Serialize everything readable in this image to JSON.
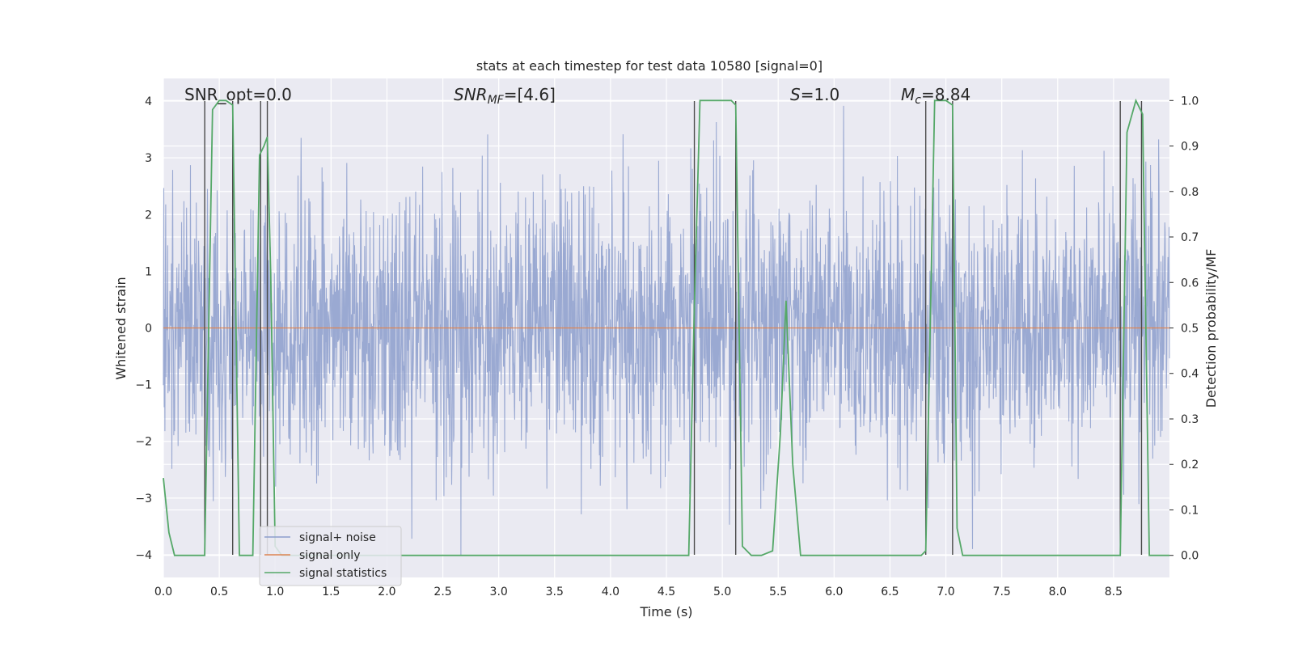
{
  "chart_data": {
    "type": "line",
    "title": "stats at each timestep for test data 10580 [signal=0]",
    "xlabel": "Time (s)",
    "ylabel": "Whitened strain",
    "y2label": "Detection probability/MF",
    "xlim": [
      0,
      9.0
    ],
    "ylim": [
      -4.4,
      4.4
    ],
    "y2lim": [
      -0.0485,
      1.0485
    ],
    "xticks": [
      "0.0",
      "0.5",
      "1.0",
      "1.5",
      "2.0",
      "2.5",
      "3.0",
      "3.5",
      "4.0",
      "4.5",
      "5.0",
      "5.5",
      "6.0",
      "6.5",
      "7.0",
      "7.5",
      "8.0",
      "8.5"
    ],
    "yticks": [
      "4",
      "3",
      "2",
      "1",
      "0",
      "−1",
      "−2",
      "−3",
      "−4"
    ],
    "y2ticks": [
      "1.0",
      "0.9",
      "0.8",
      "0.7",
      "0.6",
      "0.5",
      "0.4",
      "0.3",
      "0.2",
      "0.1",
      "0.0"
    ],
    "grid": true,
    "legend_position": "lower-left",
    "annotations": {
      "snr_opt": "SNR_opt=0.0",
      "snr_mf_main": "SNR",
      "snr_mf_sub": "MF",
      "snr_mf_value": "=[4.6]",
      "s_main": "S",
      "s_value": "=1.0",
      "mc_main": "M",
      "mc_sub": "c",
      "mc_value": "=8.84"
    },
    "series": [
      {
        "name": "signal+ noise",
        "color": "#8c9ecc",
        "description_of_values": "whitened strain noise, amplitude mostly within ±2.6, peaks near ±4",
        "envelope_abs": 2.6,
        "peak_abs": 4.0
      },
      {
        "name": "signal only",
        "color": "#dd8452",
        "x": [
          0,
          9.0
        ],
        "y": [
          0,
          0
        ]
      },
      {
        "name": "signal statistics",
        "color": "#55a868",
        "axis": "right",
        "x": [
          0.0,
          0.05,
          0.1,
          0.15,
          0.2,
          0.25,
          0.3,
          0.37,
          0.44,
          0.5,
          0.56,
          0.62,
          0.68,
          0.74,
          0.8,
          0.86,
          0.9,
          0.93,
          0.96,
          1.0,
          1.06,
          1.12,
          1.5,
          2.0,
          2.5,
          3.0,
          3.5,
          4.0,
          4.5,
          4.7,
          4.75,
          4.8,
          4.9,
          5.0,
          5.08,
          5.12,
          5.18,
          5.26,
          5.35,
          5.45,
          5.52,
          5.57,
          5.63,
          5.7,
          5.8,
          6.0,
          6.1,
          6.5,
          6.78,
          6.82,
          6.9,
          7.0,
          7.06,
          7.1,
          7.15,
          7.2,
          7.5,
          8.0,
          8.5,
          8.56,
          8.62,
          8.7,
          8.76,
          8.82,
          8.9,
          9.0
        ],
        "y": [
          0.17,
          0.05,
          0.0,
          0.0,
          0.0,
          0.0,
          0.0,
          0.0,
          0.98,
          1.0,
          1.0,
          0.99,
          0.0,
          0.0,
          0.0,
          0.88,
          0.9,
          0.92,
          0.62,
          0.02,
          0.0,
          0.0,
          0.0,
          0.0,
          0.0,
          0.0,
          0.0,
          0.0,
          0.0,
          0.0,
          0.55,
          1.0,
          1.0,
          1.0,
          1.0,
          0.99,
          0.02,
          0.0,
          0.0,
          0.01,
          0.27,
          0.56,
          0.2,
          0.0,
          0.0,
          0.0,
          0.0,
          0.0,
          0.0,
          0.01,
          1.0,
          1.0,
          0.99,
          0.06,
          0.0,
          0.0,
          0.0,
          0.0,
          0.0,
          0.0,
          0.93,
          1.0,
          0.97,
          0.0,
          0.0,
          0.0
        ]
      }
    ],
    "vertical_markers_x": [
      0.37,
      0.62,
      0.87,
      0.93,
      4.75,
      5.12,
      6.82,
      7.06,
      8.56,
      8.75
    ]
  }
}
